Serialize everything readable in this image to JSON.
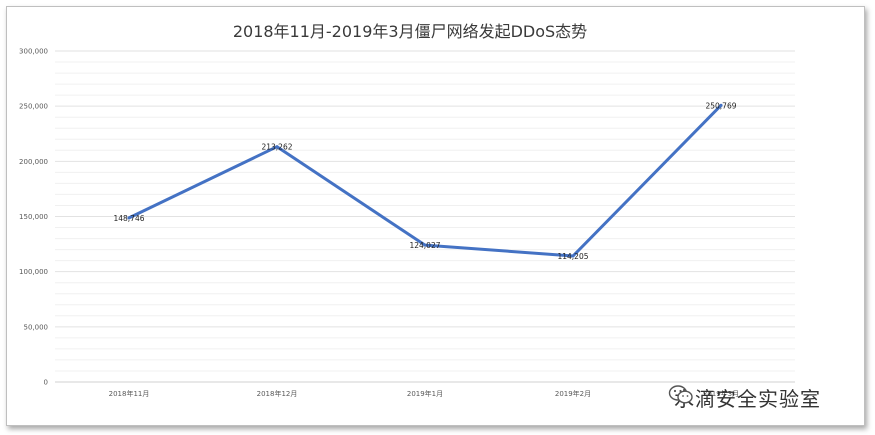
{
  "chart_data": {
    "type": "line",
    "title": "2018年11月-2019年3月僵尸网络发起DDoS态势",
    "categories": [
      "2018年11月",
      "2018年12月",
      "2019年1月",
      "2019年2月",
      "2019年3月"
    ],
    "series": [
      {
        "values": [
          148746,
          213262,
          124027,
          114205,
          250769
        ],
        "color": "#4472c4"
      }
    ],
    "data_labels": [
      "148,746",
      "213,262",
      "124,027",
      "114,205",
      "250,769"
    ],
    "y_ticks": [
      "0",
      "50,000",
      "100,000",
      "150,000",
      "200,000",
      "250,000",
      "300,000"
    ],
    "ylim": [
      0,
      300000
    ],
    "grid": true
  },
  "watermark": {
    "text": "水滴安全实验室",
    "icon": "wechat-icon"
  }
}
